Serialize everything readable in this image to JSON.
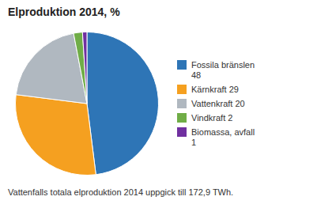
{
  "chart_data": {
    "type": "pie",
    "title": "Elproduktion 2014, %",
    "categories": [
      "Fossila bränslen\n48",
      "Kärnkraft 29",
      "Vattenkraft 20",
      "Vindkraft 2",
      "Biomassa, avfall\n1"
    ],
    "values": [
      48,
      29,
      20,
      2,
      1
    ],
    "colors": [
      "#2e75b6",
      "#f5a020",
      "#b0b8c0",
      "#70ad47",
      "#7030a0"
    ],
    "annotations": [
      "Vattenfalls totala elproduktion 2014 uppgick till 172,9 TWh."
    ],
    "legend": "right"
  }
}
